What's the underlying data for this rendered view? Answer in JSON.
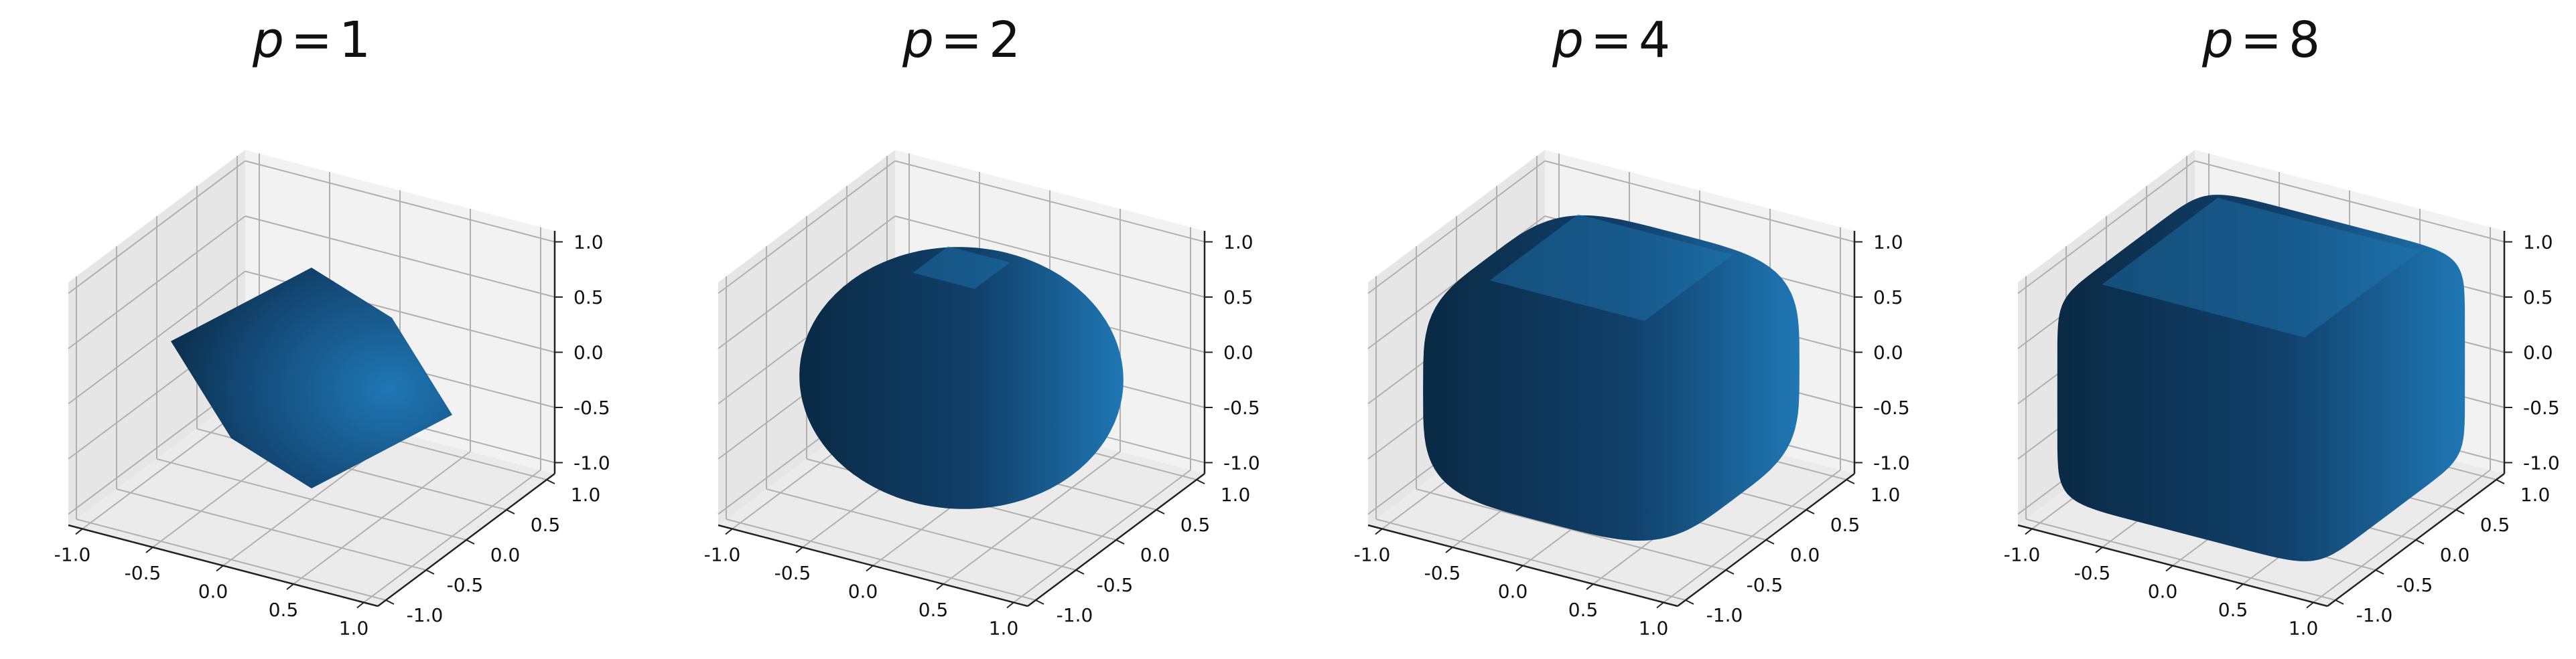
{
  "figure": {
    "colors": {
      "surface_light": "#1f77b4",
      "surface_dark": "#0a2a45",
      "pane_back": "#f2f2f2",
      "pane_side": "#e6e6e6",
      "pane_floor": "#ebebeb",
      "grid": "#b0b0b0",
      "axis": "#222222"
    }
  },
  "chart_data": [
    {
      "type": "3d-surface",
      "surface": "unit p-norm ball |x|^p + |y|^p + |z|^p = 1",
      "title_var": "p",
      "title_op": "=",
      "title_val": "1",
      "p": 1,
      "color": "#1f77b4",
      "xlim": [
        -1.0,
        1.0
      ],
      "ylim": [
        -1.0,
        1.0
      ],
      "zlim": [
        -1.0,
        1.0
      ],
      "x_ticks": [
        "-1.0",
        "-0.5",
        "0.0",
        "0.5",
        "1.0"
      ],
      "y_ticks": [
        "-1.0",
        "-0.5",
        "0.0",
        "0.5",
        "1.0"
      ],
      "z_ticks": [
        "-1.0",
        "-0.5",
        "0.0",
        "0.5",
        "1.0"
      ],
      "grid": true
    },
    {
      "type": "3d-surface",
      "surface": "unit p-norm ball |x|^p + |y|^p + |z|^p = 1",
      "title_var": "p",
      "title_op": "=",
      "title_val": "2",
      "p": 2,
      "color": "#1f77b4",
      "xlim": [
        -1.0,
        1.0
      ],
      "ylim": [
        -1.0,
        1.0
      ],
      "zlim": [
        -1.0,
        1.0
      ],
      "x_ticks": [
        "-1.0",
        "-0.5",
        "0.0",
        "0.5",
        "1.0"
      ],
      "y_ticks": [
        "-1.0",
        "-0.5",
        "0.0",
        "0.5",
        "1.0"
      ],
      "z_ticks": [
        "-1.0",
        "-0.5",
        "0.0",
        "0.5",
        "1.0"
      ],
      "grid": true
    },
    {
      "type": "3d-surface",
      "surface": "unit p-norm ball |x|^p + |y|^p + |z|^p = 1",
      "title_var": "p",
      "title_op": "=",
      "title_val": "4",
      "p": 4,
      "color": "#1f77b4",
      "xlim": [
        -1.0,
        1.0
      ],
      "ylim": [
        -1.0,
        1.0
      ],
      "zlim": [
        -1.0,
        1.0
      ],
      "x_ticks": [
        "-1.0",
        "-0.5",
        "0.0",
        "0.5",
        "1.0"
      ],
      "y_ticks": [
        "-1.0",
        "-0.5",
        "0.0",
        "0.5",
        "1.0"
      ],
      "z_ticks": [
        "-1.0",
        "-0.5",
        "0.0",
        "0.5",
        "1.0"
      ],
      "grid": true
    },
    {
      "type": "3d-surface",
      "surface": "unit p-norm ball |x|^p + |y|^p + |z|^p = 1",
      "title_var": "p",
      "title_op": "=",
      "title_val": "8",
      "p": 8,
      "color": "#1f77b4",
      "xlim": [
        -1.0,
        1.0
      ],
      "ylim": [
        -1.0,
        1.0
      ],
      "zlim": [
        -1.0,
        1.0
      ],
      "x_ticks": [
        "-1.0",
        "-0.5",
        "0.0",
        "0.5",
        "1.0"
      ],
      "y_ticks": [
        "-1.0",
        "-0.5",
        "0.0",
        "0.5",
        "1.0"
      ],
      "z_ticks": [
        "-1.0",
        "-0.5",
        "0.0",
        "0.5",
        "1.0"
      ],
      "grid": true
    }
  ]
}
